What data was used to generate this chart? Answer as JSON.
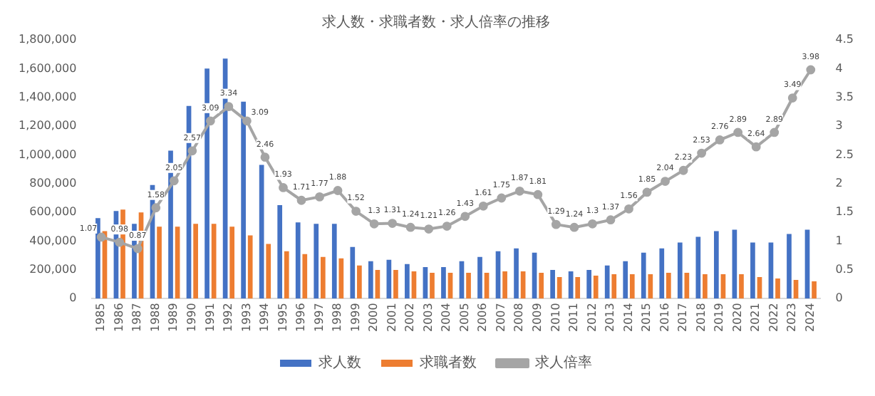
{
  "chart_data": {
    "type": "bar",
    "title": "求人数・求職者数・求人倍率の推移",
    "categories": [
      "1985",
      "1986",
      "1987",
      "1988",
      "1989",
      "1990",
      "1991",
      "1992",
      "1993",
      "1994",
      "1995",
      "1996",
      "1997",
      "1998",
      "1999",
      "2000",
      "2001",
      "2002",
      "2003",
      "2004",
      "2005",
      "2006",
      "2007",
      "2008",
      "2009",
      "2010",
      "2011",
      "2012",
      "2013",
      "2014",
      "2015",
      "2016",
      "2017",
      "2018",
      "2019",
      "2020",
      "2021",
      "2022",
      "2023",
      "2024"
    ],
    "series": [
      {
        "name": "求人数",
        "color": "#4472c4",
        "values": [
          560000,
          610000,
          520000,
          790000,
          1030000,
          1340000,
          1600000,
          1670000,
          1370000,
          930000,
          650000,
          530000,
          520000,
          520000,
          360000,
          260000,
          270000,
          240000,
          220000,
          220000,
          260000,
          290000,
          330000,
          350000,
          320000,
          200000,
          190000,
          200000,
          230000,
          260000,
          320000,
          350000,
          390000,
          430000,
          470000,
          480000,
          390000,
          390000,
          450000,
          480000
        ]
      },
      {
        "name": "求職者数",
        "color": "#ed7d31",
        "values": [
          470000,
          620000,
          600000,
          500000,
          500000,
          520000,
          520000,
          500000,
          440000,
          380000,
          330000,
          310000,
          290000,
          280000,
          230000,
          200000,
          200000,
          190000,
          180000,
          180000,
          180000,
          180000,
          190000,
          190000,
          180000,
          150000,
          150000,
          160000,
          170000,
          170000,
          170000,
          180000,
          180000,
          170000,
          170000,
          170000,
          150000,
          140000,
          130000,
          120000
        ]
      },
      {
        "name": "求人倍率",
        "type": "line",
        "axis": "y2",
        "color": "#a5a5a5",
        "marker": "circle",
        "values": [
          1.07,
          0.98,
          0.87,
          1.58,
          2.05,
          2.57,
          3.09,
          3.34,
          3.09,
          2.46,
          1.93,
          1.71,
          1.77,
          1.88,
          1.52,
          1.3,
          1.31,
          1.24,
          1.21,
          1.26,
          1.43,
          1.61,
          1.75,
          1.87,
          1.81,
          1.29,
          1.24,
          1.3,
          1.37,
          1.56,
          1.85,
          2.04,
          2.23,
          2.53,
          2.76,
          2.89,
          2.64,
          2.89,
          3.49,
          3.98
        ],
        "value_labels": [
          "1.07",
          "0.98",
          "0.87",
          "1.58",
          "2.05",
          "2.57",
          "3.09",
          "3.34",
          "3.09",
          "2.46",
          "1.93",
          "1.71",
          "1.77",
          "1.88",
          "1.52",
          "1.3",
          "1.31",
          "1.24",
          "1.21",
          "1.26",
          "1.43",
          "1.61",
          "1.75",
          "1.87",
          "1.81",
          "1.29",
          "1.24",
          "1.3",
          "1.37",
          "1.56",
          "1.85",
          "2.04",
          "2.23",
          "2.53",
          "2.76",
          "2.89",
          "2.64",
          "2.89",
          "3.49",
          "3.98"
        ]
      }
    ],
    "ylim": [
      0,
      1800000
    ],
    "yticks": [
      {
        "value": 0,
        "label": "0"
      },
      {
        "value": 200000,
        "label": "200,000"
      },
      {
        "value": 400000,
        "label": "400,000"
      },
      {
        "value": 600000,
        "label": "600,000"
      },
      {
        "value": 800000,
        "label": "800,000"
      },
      {
        "value": 1000000,
        "label": "1,000,000"
      },
      {
        "value": 1200000,
        "label": "1,200,000"
      },
      {
        "value": 1400000,
        "label": "1,400,000"
      },
      {
        "value": 1600000,
        "label": "1,600,000"
      },
      {
        "value": 1800000,
        "label": "1,800,000"
      }
    ],
    "y2lim": [
      0,
      4.5
    ],
    "y2ticks": [
      0,
      0.5,
      1,
      1.5,
      2,
      2.5,
      3,
      3.5,
      4,
      4.5
    ],
    "grid": false,
    "legend": "bottom"
  }
}
